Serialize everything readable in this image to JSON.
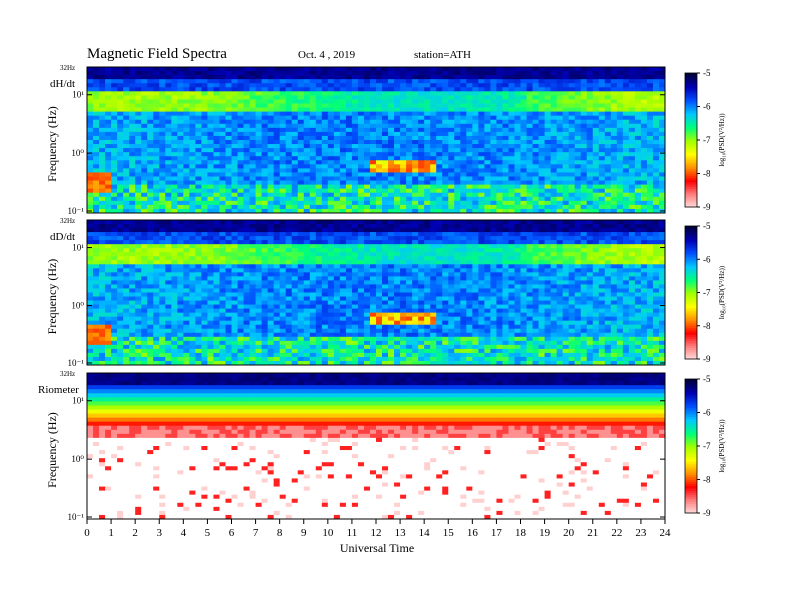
{
  "header": {
    "title": "Magnetic  Field  Spectra",
    "date": "Oct. 4  , 2019",
    "station": "station=ATH"
  },
  "chart_data": [
    {
      "type": "heatmap",
      "panel_label": "dH/dt",
      "ylabel": "Frequency  (Hz)",
      "top_tick": "32Hz",
      "yticks": [
        "10¹",
        "10⁰",
        "10⁻¹"
      ],
      "y_scale": "log",
      "colorbar": {
        "label": "log₁₀(PSD(V²/Hz))",
        "ticks": [
          "-5",
          "-6",
          "-7",
          "-8",
          "-9"
        ],
        "range": [
          -9,
          -5
        ],
        "colors": [
          "#00003a",
          "#0000b4",
          "#0050ff",
          "#00c8ff",
          "#00ff7a",
          "#a0ff00",
          "#ffff00",
          "#ff9000",
          "#ff0000",
          "#ff8080",
          "#ffe0e0"
        ]
      }
    },
    {
      "type": "heatmap",
      "panel_label": "dD/dt",
      "ylabel": "Frequency  (Hz)",
      "top_tick": "32Hz",
      "yticks": [
        "10¹",
        "10⁰",
        "10⁻¹"
      ],
      "y_scale": "log",
      "colorbar": {
        "label": "log₁₀(PSD(V²/Hz))",
        "ticks": [
          "-5",
          "-6",
          "-7",
          "-8",
          "-9"
        ],
        "range": [
          -9,
          -5
        ],
        "colors": [
          "#00003a",
          "#0000b4",
          "#0050ff",
          "#00c8ff",
          "#00ff7a",
          "#a0ff00",
          "#ffff00",
          "#ff9000",
          "#ff0000",
          "#ff8080",
          "#ffe0e0"
        ]
      }
    },
    {
      "type": "heatmap",
      "panel_label": "Riometer",
      "ylabel": "Frequency  (Hz)",
      "top_tick": "32Hz",
      "yticks": [
        "10¹",
        "10⁰",
        "10⁻¹"
      ],
      "y_scale": "log",
      "xlabel": "Universal Time",
      "xticks": [
        "0",
        "1",
        "2",
        "3",
        "4",
        "5",
        "6",
        "7",
        "8",
        "9",
        "10",
        "11",
        "12",
        "13",
        "14",
        "15",
        "16",
        "17",
        "18",
        "19",
        "20",
        "21",
        "22",
        "23",
        "24"
      ],
      "xlim": [
        0,
        24
      ],
      "colorbar": {
        "label": "log₁₀(PSD(V²/Hz))",
        "ticks": [
          "-5",
          "-6",
          "-7",
          "-8",
          "-9"
        ],
        "range": [
          -9,
          -5
        ],
        "colors": [
          "#00003a",
          "#0000b4",
          "#0050ff",
          "#00c8ff",
          "#00ff7a",
          "#a0ff00",
          "#ffff00",
          "#ff9000",
          "#ff0000",
          "#ff8080",
          "#ffe0e0"
        ]
      }
    }
  ]
}
